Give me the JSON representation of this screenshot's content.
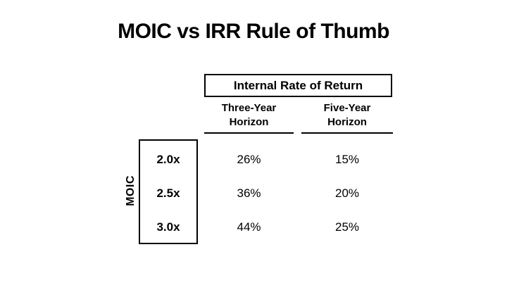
{
  "slide": {
    "title": "MOIC vs IRR Rule of Thumb"
  },
  "table": {
    "group_header": "Internal Rate of Return",
    "row_axis_label": "MOIC",
    "columns": [
      {
        "line1": "Three-Year",
        "line2": "Horizon"
      },
      {
        "line1": "Five-Year",
        "line2": "Horizon"
      }
    ],
    "rows": [
      {
        "moic": "2.0x",
        "three_year_irr": "26%",
        "five_year_irr": "15%"
      },
      {
        "moic": "2.5x",
        "three_year_irr": "36%",
        "five_year_irr": "20%"
      },
      {
        "moic": "3.0x",
        "three_year_irr": "44%",
        "five_year_irr": "25%"
      }
    ]
  },
  "colors": {
    "background": "#ffffff",
    "text": "#000000",
    "border": "#000000"
  }
}
